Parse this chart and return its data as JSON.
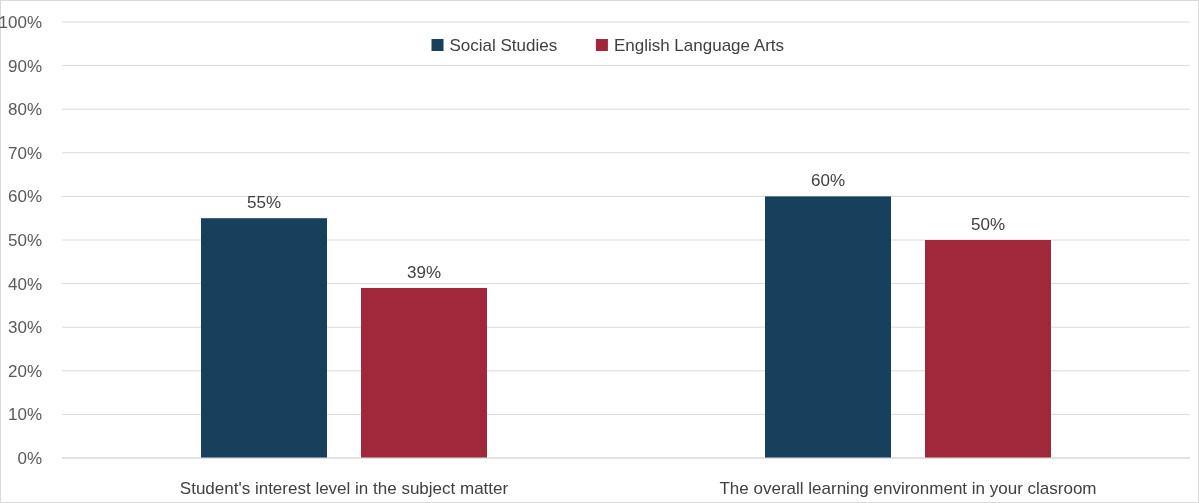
{
  "chart_data": {
    "type": "bar",
    "categories": [
      "Student's interest level in the subject matter",
      "The overall learning environment in your clasroom"
    ],
    "series": [
      {
        "name": "Social Studies",
        "color": "#17405c",
        "values": [
          55,
          60
        ],
        "value_labels": [
          "55%",
          "60%"
        ]
      },
      {
        "name": "English Language Arts",
        "color": "#a0283a",
        "values": [
          39,
          50
        ],
        "value_labels": [
          "39%",
          "50%"
        ]
      }
    ],
    "ylim": [
      0,
      100
    ],
    "yticks": [
      {
        "value": 0,
        "label": "0%"
      },
      {
        "value": 10,
        "label": "10%"
      },
      {
        "value": 20,
        "label": "20%"
      },
      {
        "value": 30,
        "label": "30%"
      },
      {
        "value": 40,
        "label": "40%"
      },
      {
        "value": 50,
        "label": "50%"
      },
      {
        "value": 60,
        "label": "60%"
      },
      {
        "value": 70,
        "label": "70%"
      },
      {
        "value": 80,
        "label": "80%"
      },
      {
        "value": 90,
        "label": "90%"
      },
      {
        "value": 100,
        "label": "100%"
      }
    ],
    "grid": "y",
    "legend": "top"
  }
}
